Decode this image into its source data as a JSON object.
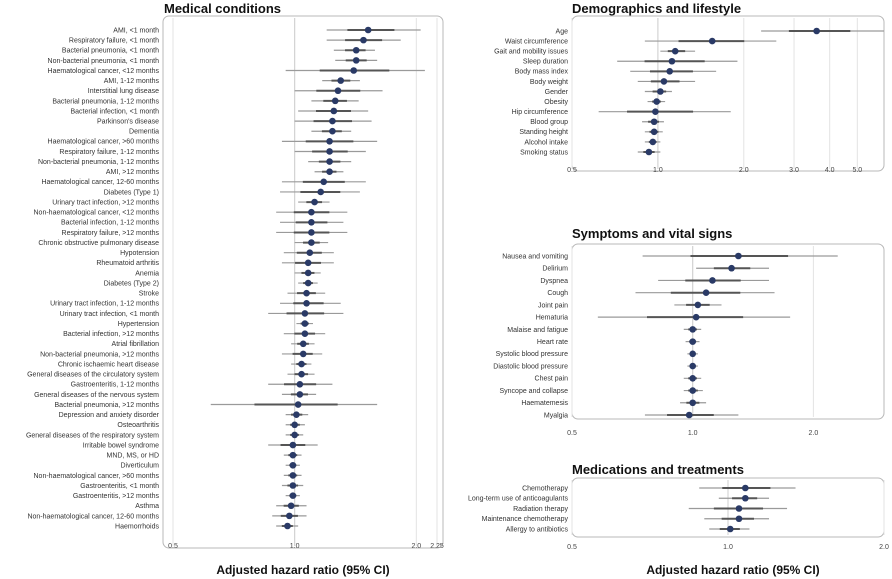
{
  "colors": {
    "point": "#2a3a66",
    "ci_outer": "#9a9a9a",
    "ci_inner": "#555555",
    "frame": "#b8b8b8"
  },
  "chart_data": [
    {
      "type": "forest",
      "title": "Medical conditions",
      "xlabel": "Adjusted hazard ratio (95% CI)",
      "log_scale": true,
      "xlim": [
        0.5,
        2.25
      ],
      "ticks": [
        0.5,
        1.0,
        2.0,
        2.25
      ],
      "tick_labels": [
        "0.5",
        "1.0",
        "2.0",
        "2.25"
      ],
      "reference_line": 1.0,
      "rows": [
        {
          "label": "AMI, <1 month",
          "hr": 1.52,
          "lo": 1.2,
          "hi": 2.05
        },
        {
          "label": "Respiratory failure, <1 month",
          "hr": 1.48,
          "lo": 1.2,
          "hi": 1.83
        },
        {
          "label": "Bacterial pneumonia, <1 month",
          "hr": 1.42,
          "lo": 1.25,
          "hi": 1.58
        },
        {
          "label": "Non-bacterial pneumonia, <1 month",
          "hr": 1.42,
          "lo": 1.26,
          "hi": 1.6
        },
        {
          "label": "Haematological cancer, <12 months",
          "hr": 1.4,
          "lo": 0.95,
          "hi": 2.1
        },
        {
          "label": "AMI, 1-12 months",
          "hr": 1.3,
          "lo": 1.17,
          "hi": 1.45
        },
        {
          "label": "Interstitial lung disease",
          "hr": 1.28,
          "lo": 1.0,
          "hi": 1.65
        },
        {
          "label": "Bacterial pneumonia, 1-12 months",
          "hr": 1.26,
          "lo": 1.1,
          "hi": 1.44
        },
        {
          "label": "Bacterial infection, <1 month",
          "hr": 1.25,
          "lo": 1.02,
          "hi": 1.52
        },
        {
          "label": "Parkinson's disease",
          "hr": 1.24,
          "lo": 1.0,
          "hi": 1.55
        },
        {
          "label": "Dementia",
          "hr": 1.24,
          "lo": 1.1,
          "hi": 1.38
        },
        {
          "label": "Haematological cancer, >60 months",
          "hr": 1.22,
          "lo": 0.93,
          "hi": 1.6
        },
        {
          "label": "Respiratory failure, 1-12 months",
          "hr": 1.22,
          "lo": 1.0,
          "hi": 1.5
        },
        {
          "label": "Non-bacterial pneumonia, 1-12 months",
          "hr": 1.22,
          "lo": 1.08,
          "hi": 1.38
        },
        {
          "label": "AMI, >12 months",
          "hr": 1.22,
          "lo": 1.12,
          "hi": 1.32
        },
        {
          "label": "Haematological cancer, 12-60 months",
          "hr": 1.18,
          "lo": 0.93,
          "hi": 1.5
        },
        {
          "label": "Diabetes (Type 1)",
          "hr": 1.16,
          "lo": 0.92,
          "hi": 1.45
        },
        {
          "label": "Urinary tract infection, >12 months",
          "hr": 1.12,
          "lo": 1.02,
          "hi": 1.22
        },
        {
          "label": "Non-haematological cancer, <12 months",
          "hr": 1.1,
          "lo": 0.9,
          "hi": 1.35
        },
        {
          "label": "Bacterial infection, 1-12 months",
          "hr": 1.1,
          "lo": 0.92,
          "hi": 1.32
        },
        {
          "label": "Respiratory failure, >12 months",
          "hr": 1.1,
          "lo": 0.9,
          "hi": 1.35
        },
        {
          "label": "Chronic obstructive pulmonary disease",
          "hr": 1.1,
          "lo": 1.0,
          "hi": 1.21
        },
        {
          "label": "Hypotension",
          "hr": 1.09,
          "lo": 0.94,
          "hi": 1.25
        },
        {
          "label": "Rheumatoid arthritis",
          "hr": 1.08,
          "lo": 0.93,
          "hi": 1.25
        },
        {
          "label": "Anemia",
          "hr": 1.08,
          "lo": 1.0,
          "hi": 1.16
        },
        {
          "label": "Diabetes (Type 2)",
          "hr": 1.08,
          "lo": 1.02,
          "hi": 1.14
        },
        {
          "label": "Stroke",
          "hr": 1.07,
          "lo": 0.96,
          "hi": 1.19
        },
        {
          "label": "Urinary tract infection, 1-12 months",
          "hr": 1.07,
          "lo": 0.92,
          "hi": 1.3
        },
        {
          "label": "Urinary tract infection, <1 month",
          "hr": 1.06,
          "lo": 0.86,
          "hi": 1.32
        },
        {
          "label": "Hypertension",
          "hr": 1.06,
          "lo": 1.01,
          "hi": 1.11
        },
        {
          "label": "Bacterial infection, >12 months",
          "hr": 1.06,
          "lo": 0.94,
          "hi": 1.19
        },
        {
          "label": "Atrial fibrillation",
          "hr": 1.05,
          "lo": 0.98,
          "hi": 1.12
        },
        {
          "label": "Non-bacterial pneumonia, >12 months",
          "hr": 1.05,
          "lo": 0.93,
          "hi": 1.17
        },
        {
          "label": "Chronic ischaemic heart disease",
          "hr": 1.04,
          "lo": 0.98,
          "hi": 1.1
        },
        {
          "label": "General diseases of the circulatory system",
          "hr": 1.04,
          "lo": 0.96,
          "hi": 1.12
        },
        {
          "label": "Gastroenteritis, 1-12 months",
          "hr": 1.03,
          "lo": 0.86,
          "hi": 1.24
        },
        {
          "label": "General diseases of the nervous system",
          "hr": 1.03,
          "lo": 0.93,
          "hi": 1.13
        },
        {
          "label": "Bacterial pneumonia, >12 months",
          "hr": 1.02,
          "lo": 0.62,
          "hi": 1.6
        },
        {
          "label": "Depression and anxiety disorder",
          "hr": 1.01,
          "lo": 0.95,
          "hi": 1.08
        },
        {
          "label": "Osteoarthritis",
          "hr": 1.0,
          "lo": 0.95,
          "hi": 1.06
        },
        {
          "label": "General diseases of the respiratory system",
          "hr": 1.0,
          "lo": 0.95,
          "hi": 1.05
        },
        {
          "label": "Irritable bowel syndrome",
          "hr": 0.99,
          "lo": 0.86,
          "hi": 1.14
        },
        {
          "label": "MND, MS, or HD",
          "hr": 0.99,
          "lo": 0.94,
          "hi": 1.04
        },
        {
          "label": "Diverticulum",
          "hr": 0.99,
          "lo": 0.95,
          "hi": 1.03
        },
        {
          "label": "Non-haematological cancer, >60 months",
          "hr": 0.99,
          "lo": 0.94,
          "hi": 1.04
        },
        {
          "label": "Gastroenteritis, <1 month",
          "hr": 0.99,
          "lo": 0.93,
          "hi": 1.05
        },
        {
          "label": "Gastroenteritis, >12 months",
          "hr": 0.99,
          "lo": 0.95,
          "hi": 1.03
        },
        {
          "label": "Asthma",
          "hr": 0.98,
          "lo": 0.9,
          "hi": 1.07
        },
        {
          "label": "Non-haematological cancer, 12-60 months",
          "hr": 0.97,
          "lo": 0.88,
          "hi": 1.07
        },
        {
          "label": "Haemorrhoids",
          "hr": 0.96,
          "lo": 0.9,
          "hi": 1.02
        }
      ]
    },
    {
      "type": "forest",
      "title": "Demographics and lifestyle",
      "xlabel": "",
      "log_scale": true,
      "xlim": [
        0.5,
        6.2
      ],
      "ticks": [
        0.5,
        1.0,
        2.0,
        3.0,
        4.0,
        5.0
      ],
      "tick_labels": [
        "0.5",
        "1.0",
        "2.0",
        "3.0",
        "4.0",
        "5.0"
      ],
      "reference_line": 1.0,
      "rows": [
        {
          "label": "Age",
          "hr": 3.6,
          "lo": 2.3,
          "hi": 6.2
        },
        {
          "label": "Waist circumference",
          "hr": 1.55,
          "lo": 0.9,
          "hi": 2.6
        },
        {
          "label": "Gait and mobility issues",
          "hr": 1.15,
          "lo": 1.02,
          "hi": 1.35
        },
        {
          "label": "Sleep duration",
          "hr": 1.12,
          "lo": 0.72,
          "hi": 1.9
        },
        {
          "label": "Body mass index",
          "hr": 1.1,
          "lo": 0.8,
          "hi": 1.6
        },
        {
          "label": "Body weight",
          "hr": 1.05,
          "lo": 0.85,
          "hi": 1.35
        },
        {
          "label": "Gender",
          "hr": 1.02,
          "lo": 0.9,
          "hi": 1.12
        },
        {
          "label": "Obesity",
          "hr": 0.99,
          "lo": 0.92,
          "hi": 1.06
        },
        {
          "label": "Hip circumference",
          "hr": 0.98,
          "lo": 0.62,
          "hi": 1.8
        },
        {
          "label": "Blood group",
          "hr": 0.97,
          "lo": 0.88,
          "hi": 1.05
        },
        {
          "label": "Standing height",
          "hr": 0.97,
          "lo": 0.9,
          "hi": 1.04
        },
        {
          "label": "Alcohol intake",
          "hr": 0.96,
          "lo": 0.9,
          "hi": 1.02
        },
        {
          "label": "Smoking status",
          "hr": 0.93,
          "lo": 0.85,
          "hi": 1.02
        }
      ]
    },
    {
      "type": "forest",
      "title": "Symptoms and vital signs",
      "xlabel": "",
      "log_scale": true,
      "xlim": [
        0.5,
        3.0
      ],
      "ticks": [
        0.5,
        1.0,
        2.0
      ],
      "tick_labels": [
        "0.5",
        "1.0",
        "2.0"
      ],
      "reference_line": 1.0,
      "rows": [
        {
          "label": "Nausea and vomiting",
          "hr": 1.3,
          "lo": 0.75,
          "hi": 2.3
        },
        {
          "label": "Delirium",
          "hr": 1.25,
          "lo": 1.02,
          "hi": 1.55
        },
        {
          "label": "Dyspnea",
          "hr": 1.12,
          "lo": 0.82,
          "hi": 1.55
        },
        {
          "label": "Cough",
          "hr": 1.08,
          "lo": 0.72,
          "hi": 1.6
        },
        {
          "label": "Joint pain",
          "hr": 1.03,
          "lo": 0.9,
          "hi": 1.18
        },
        {
          "label": "Hematuria",
          "hr": 1.02,
          "lo": 0.58,
          "hi": 1.75
        },
        {
          "label": "Malaise and fatigue",
          "hr": 1.0,
          "lo": 0.95,
          "hi": 1.05
        },
        {
          "label": "Heart rate",
          "hr": 1.0,
          "lo": 0.96,
          "hi": 1.04
        },
        {
          "label": "Systolic blood pressure",
          "hr": 1.0,
          "lo": 0.97,
          "hi": 1.03
        },
        {
          "label": "Diastolic blood pressure",
          "hr": 1.0,
          "lo": 0.97,
          "hi": 1.03
        },
        {
          "label": "Chest pain",
          "hr": 1.0,
          "lo": 0.95,
          "hi": 1.05
        },
        {
          "label": "Syncope and collapse",
          "hr": 1.0,
          "lo": 0.95,
          "hi": 1.06
        },
        {
          "label": "Haematemesis",
          "hr": 1.0,
          "lo": 0.93,
          "hi": 1.08
        },
        {
          "label": "Myalgia",
          "hr": 0.98,
          "lo": 0.76,
          "hi": 1.3
        }
      ]
    },
    {
      "type": "forest",
      "title": "Medications and treatments",
      "xlabel": "Adjusted hazard ratio (95% CI)",
      "log_scale": true,
      "xlim": [
        0.5,
        2.0
      ],
      "ticks": [
        0.5,
        1.0,
        2.0
      ],
      "tick_labels": [
        "0.5",
        "1.0",
        "2.0"
      ],
      "reference_line": 1.0,
      "rows": [
        {
          "label": "Chemotherapy",
          "hr": 1.08,
          "lo": 0.88,
          "hi": 1.35
        },
        {
          "label": "Long-term use of anticoagulants",
          "hr": 1.08,
          "lo": 0.96,
          "hi": 1.2
        },
        {
          "label": "Radiation therapy",
          "hr": 1.05,
          "lo": 0.84,
          "hi": 1.3
        },
        {
          "label": "Maintenance chemotherapy",
          "hr": 1.05,
          "lo": 0.9,
          "hi": 1.2
        },
        {
          "label": "Allergy to antibiotics",
          "hr": 1.01,
          "lo": 0.92,
          "hi": 1.1
        }
      ]
    }
  ]
}
